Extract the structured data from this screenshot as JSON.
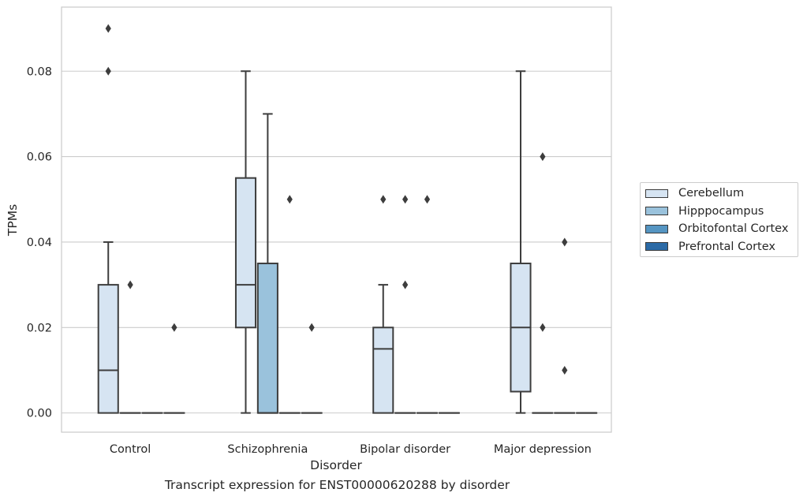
{
  "chart_data": {
    "type": "box",
    "title": "",
    "caption": "Transcript expression for ENST00000620288 by disorder",
    "xlabel": "Disorder",
    "ylabel": "TPMs",
    "ylim": [
      -0.0045,
      0.095
    ],
    "yticks": [
      0.0,
      0.02,
      0.04,
      0.06,
      0.08
    ],
    "ytick_labels": [
      "0.00",
      "0.02",
      "0.04",
      "0.06",
      "0.08"
    ],
    "grid": "horizontal",
    "legend_position": "right",
    "categories": [
      "Control",
      "Schizophrenia",
      "Bipolar disorder",
      "Major depression"
    ],
    "series": [
      {
        "name": "Cerebellum",
        "color": "#d6e4f2",
        "boxes": [
          {
            "category": "Control",
            "whislo": 0.0,
            "q1": 0.0,
            "med": 0.01,
            "q3": 0.03,
            "whishi": 0.04,
            "fliers": [
              0.08,
              0.09
            ]
          },
          {
            "category": "Schizophrenia",
            "whislo": 0.0,
            "q1": 0.02,
            "med": 0.03,
            "q3": 0.055,
            "whishi": 0.08,
            "fliers": []
          },
          {
            "category": "Bipolar disorder",
            "whislo": 0.0,
            "q1": 0.0,
            "med": 0.015,
            "q3": 0.02,
            "whishi": 0.03,
            "fliers": [
              0.05
            ]
          },
          {
            "category": "Major depression",
            "whislo": 0.0,
            "q1": 0.005,
            "med": 0.02,
            "q3": 0.035,
            "whishi": 0.08,
            "fliers": []
          }
        ]
      },
      {
        "name": "Hipppocampus",
        "color": "#9ac2dc",
        "boxes": [
          {
            "category": "Control",
            "whislo": 0.0,
            "q1": 0.0,
            "med": 0.0,
            "q3": 0.0,
            "whishi": 0.0,
            "fliers": [
              0.03
            ]
          },
          {
            "category": "Schizophrenia",
            "whislo": 0.0,
            "q1": 0.0,
            "med": 0.0,
            "q3": 0.035,
            "whishi": 0.07,
            "fliers": []
          },
          {
            "category": "Bipolar disorder",
            "whislo": 0.0,
            "q1": 0.0,
            "med": 0.0,
            "q3": 0.0,
            "whishi": 0.0,
            "fliers": [
              0.03,
              0.05
            ]
          },
          {
            "category": "Major depression",
            "whislo": 0.0,
            "q1": 0.0,
            "med": 0.0,
            "q3": 0.0,
            "whishi": 0.0,
            "fliers": [
              0.02,
              0.06
            ]
          }
        ]
      },
      {
        "name": "Orbitofontal Cortex",
        "color": "#5595c2",
        "boxes": [
          {
            "category": "Control",
            "whislo": 0.0,
            "q1": 0.0,
            "med": 0.0,
            "q3": 0.0,
            "whishi": 0.0,
            "fliers": []
          },
          {
            "category": "Schizophrenia",
            "whislo": 0.0,
            "q1": 0.0,
            "med": 0.0,
            "q3": 0.0,
            "whishi": 0.0,
            "fliers": [
              0.05
            ]
          },
          {
            "category": "Bipolar disorder",
            "whislo": 0.0,
            "q1": 0.0,
            "med": 0.0,
            "q3": 0.0,
            "whishi": 0.0,
            "fliers": [
              0.05
            ]
          },
          {
            "category": "Major depression",
            "whislo": 0.0,
            "q1": 0.0,
            "med": 0.0,
            "q3": 0.0,
            "whishi": 0.0,
            "fliers": [
              0.01,
              0.04
            ]
          }
        ]
      },
      {
        "name": "Prefrontal Cortex",
        "color": "#2b6aa6",
        "boxes": [
          {
            "category": "Control",
            "whislo": 0.0,
            "q1": 0.0,
            "med": 0.0,
            "q3": 0.0,
            "whishi": 0.0,
            "fliers": [
              0.02
            ]
          },
          {
            "category": "Schizophrenia",
            "whislo": 0.0,
            "q1": 0.0,
            "med": 0.0,
            "q3": 0.0,
            "whishi": 0.0,
            "fliers": [
              0.02
            ]
          },
          {
            "category": "Bipolar disorder",
            "whislo": 0.0,
            "q1": 0.0,
            "med": 0.0,
            "q3": 0.0,
            "whishi": 0.0,
            "fliers": []
          },
          {
            "category": "Major depression",
            "whislo": 0.0,
            "q1": 0.0,
            "med": 0.0,
            "q3": 0.0,
            "whishi": 0.0,
            "fliers": []
          }
        ]
      }
    ]
  }
}
